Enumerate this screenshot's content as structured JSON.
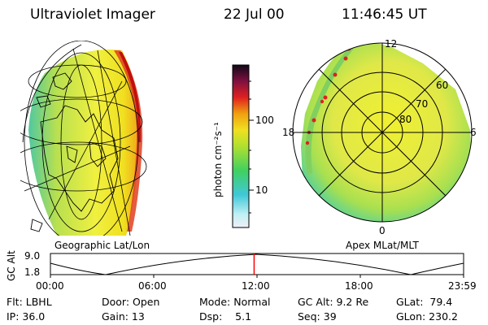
{
  "header": {
    "title": "Ultraviolet Imager",
    "date": "22 Jul 00",
    "time": "11:46:45 UT"
  },
  "colorbar": {
    "unit_label": "photon cm⁻²s⁻¹",
    "ticks": [
      "100",
      "10"
    ]
  },
  "left_map": {
    "caption": "Geographic Lat/Lon"
  },
  "polar_map": {
    "caption": "Apex MLat/MLT",
    "mlt_labels": {
      "top": "12",
      "left": "18",
      "right": "6",
      "bottom": "0"
    },
    "lat_labels": [
      "60",
      "70",
      "80"
    ]
  },
  "timeline": {
    "axis_label": "GC Alt",
    "y_ticks": [
      "9.0",
      "1.8"
    ],
    "x_ticks": [
      "00:00",
      "06:00",
      "12:00",
      "18:00",
      "23:59"
    ],
    "current_time_fraction": 0.493,
    "marker_color": "#ff0000"
  },
  "status": {
    "filter": "Flt: LBHL",
    "ip": "IP: 36.0",
    "door": "Door: Open",
    "gain": "Gain: 13",
    "mode": "Mode: Normal",
    "dsp": "Dsp:    5.1",
    "gc_alt": "GC Alt: 9.2 Re",
    "seq": "Seq: 39",
    "glat": "GLat:  79.4",
    "glon": "GLon: 230.2"
  },
  "colors": {
    "marker": "#ff0000",
    "auroral_low": "#e8e040",
    "auroral_mid": "#8ed850",
    "auroral_high": "#d01020"
  }
}
